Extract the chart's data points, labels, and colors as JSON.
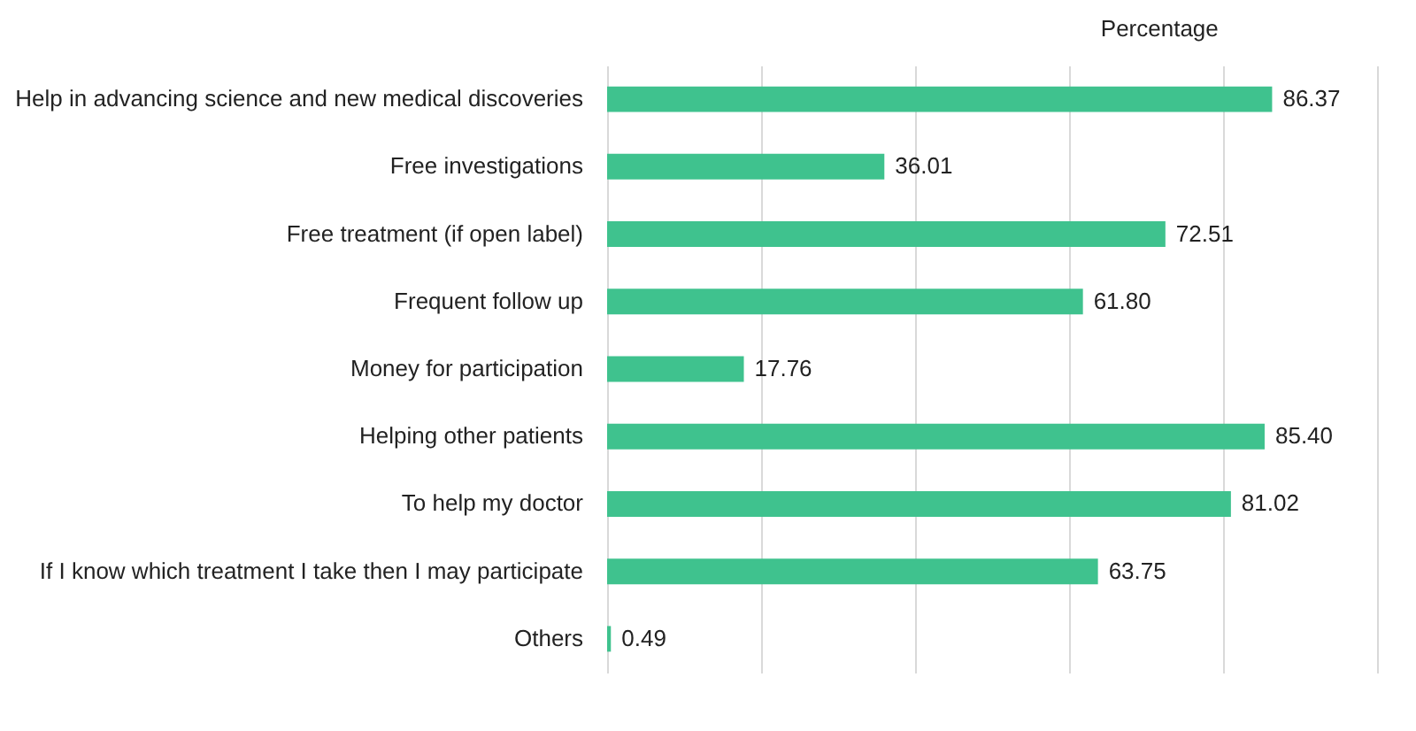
{
  "chart_data": {
    "type": "bar",
    "orientation": "horizontal",
    "xlabel": "Percentage",
    "categories": [
      "Help in advancing science and new medical discoveries",
      "Free investigations",
      "Free treatment (if open label)",
      "Frequent follow up",
      "Money for participation",
      "Helping other patients",
      "To help my doctor",
      "If I know which treatment I take then I may participate",
      "Others"
    ],
    "values": [
      86.37,
      36.01,
      72.51,
      61.8,
      17.76,
      85.4,
      81.02,
      63.75,
      0.49
    ],
    "color": "#3fc28e",
    "xlim": [
      0,
      100
    ],
    "xticks": [
      {
        "value": 0,
        "label": null
      },
      {
        "value": 20,
        "label": null
      },
      {
        "value": 40,
        "label": null
      },
      {
        "value": 60,
        "label": null
      },
      {
        "value": 80,
        "label": null
      },
      {
        "value": 100,
        "label": null
      }
    ],
    "value_labels": [
      "86.37",
      "36.01",
      "72.51",
      "61.80",
      "17.76",
      "85.40",
      "81.02",
      "63.75",
      "0.49"
    ],
    "grid": "x",
    "tick_labels": "y"
  }
}
